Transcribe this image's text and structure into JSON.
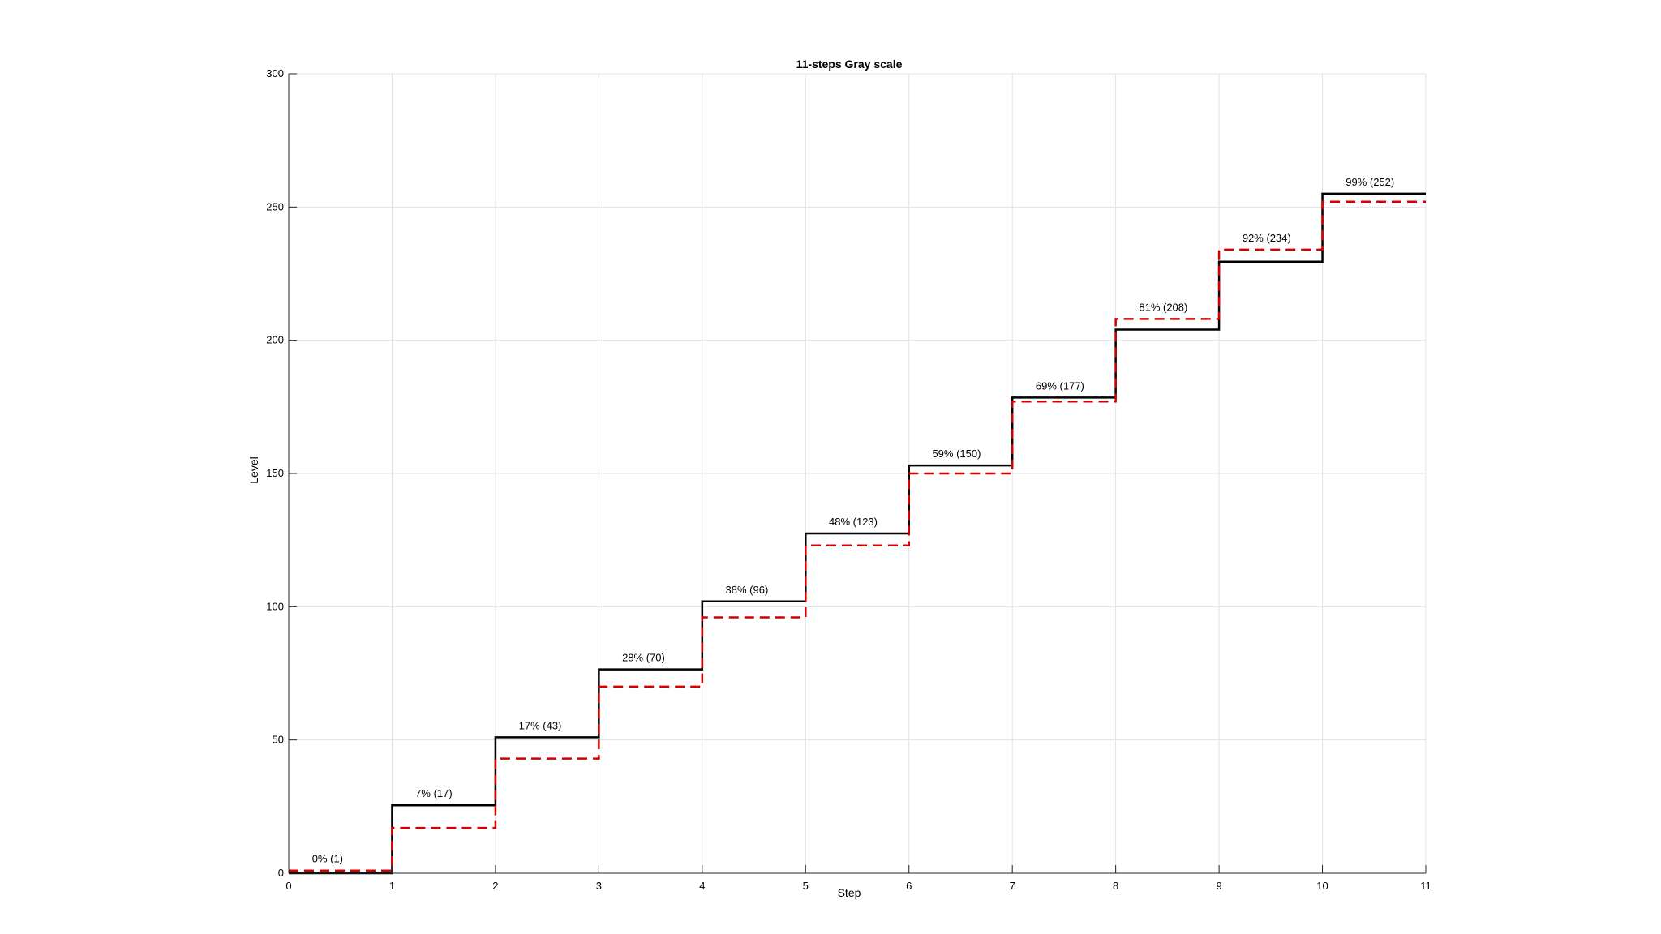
{
  "chart_data": {
    "type": "line",
    "style": "stairs",
    "title": "11-steps Gray scale",
    "xlabel": "Step",
    "ylabel": "Level",
    "xlim": [
      0,
      11
    ],
    "ylim": [
      0,
      300
    ],
    "xticks": [
      0,
      1,
      2,
      3,
      4,
      5,
      6,
      7,
      8,
      9,
      10,
      11
    ],
    "yticks": [
      0,
      50,
      100,
      150,
      200,
      250,
      300
    ],
    "grid": true,
    "series": [
      {
        "line_style": "solid",
        "color": "#000000",
        "x": [
          0,
          1,
          2,
          3,
          4,
          5,
          6,
          7,
          8,
          9,
          10,
          11
        ],
        "y": [
          0,
          25.5,
          51,
          76.5,
          102,
          127.5,
          153,
          178.5,
          204,
          229.5,
          255,
          255
        ]
      },
      {
        "line_style": "dashed",
        "color": "#d40000",
        "x": [
          0,
          1,
          2,
          3,
          4,
          5,
          6,
          7,
          8,
          9,
          10,
          11
        ],
        "y": [
          1,
          17,
          43,
          70,
          96,
          123,
          150,
          177,
          208,
          234,
          252,
          252
        ]
      }
    ],
    "annotations": [
      {
        "text": "0% (1)",
        "x": 0.5,
        "y": 1
      },
      {
        "text": "7% (17)",
        "x": 1.5,
        "y": 25.5
      },
      {
        "text": "17% (43)",
        "x": 2.5,
        "y": 51
      },
      {
        "text": "28% (70)",
        "x": 3.5,
        "y": 76.5
      },
      {
        "text": "38% (96)",
        "x": 4.5,
        "y": 102
      },
      {
        "text": "48% (123)",
        "x": 5.5,
        "y": 127.5
      },
      {
        "text": "59% (150)",
        "x": 6.5,
        "y": 153
      },
      {
        "text": "69% (177)",
        "x": 7.5,
        "y": 178.5
      },
      {
        "text": "81% (208)",
        "x": 8.5,
        "y": 208
      },
      {
        "text": "92% (234)",
        "x": 9.5,
        "y": 234
      },
      {
        "text": "99% (252)",
        "x": 10.5,
        "y": 255
      }
    ],
    "colors": {
      "axis": "#262626",
      "grid": "#e3e3e3"
    }
  }
}
